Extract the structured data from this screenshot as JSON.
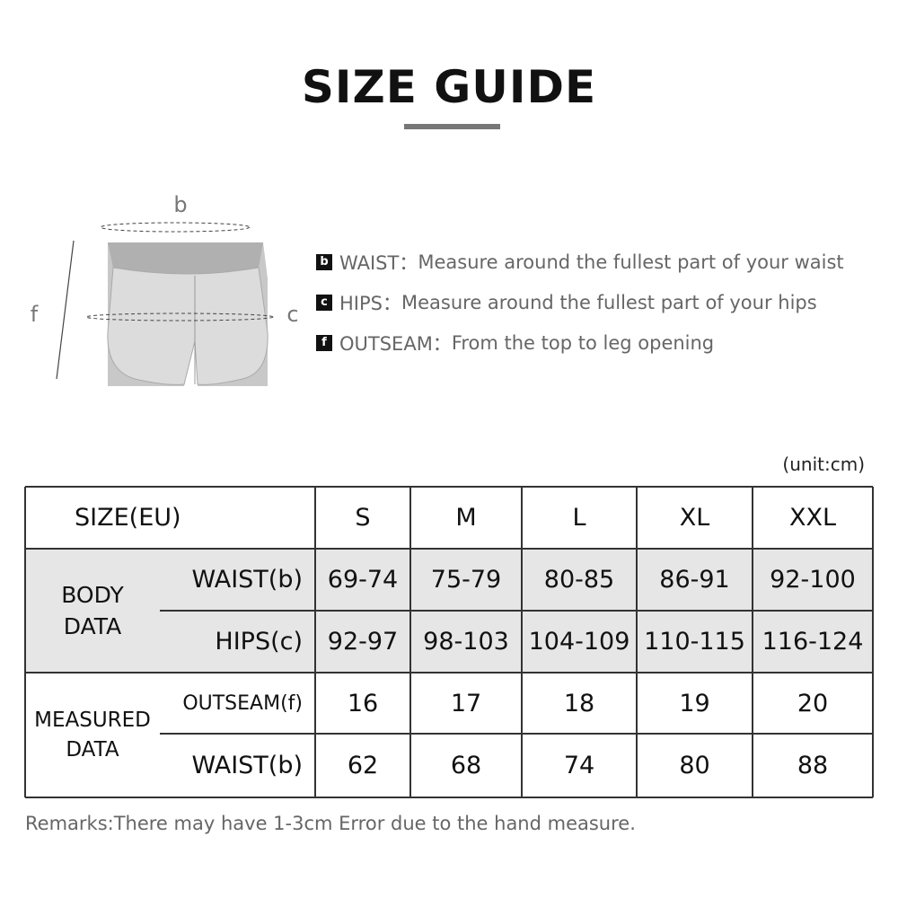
{
  "title": "SIZE GUIDE",
  "diagram": {
    "label_b": "b",
    "label_c": "c",
    "label_f": "f"
  },
  "legend": [
    {
      "key": "b",
      "name": "WAIST：",
      "desc": "Measure around the fullest part of your waist"
    },
    {
      "key": "c",
      "name": "HIPS：",
      "desc": "Measure around the fullest part of your hips"
    },
    {
      "key": "f",
      "name": "OUTSEAM：",
      "desc": "From the top to leg opening"
    }
  ],
  "unit": "(unit:cm)",
  "table": {
    "header": "SIZE(EU)",
    "sizes": [
      "S",
      "M",
      "L",
      "XL",
      "XXL"
    ],
    "groups": [
      {
        "label": "BODY\nDATA",
        "rows": [
          {
            "label": "WAIST(b)",
            "values": [
              "69-74",
              "75-79",
              "80-85",
              "86-91",
              "92-100"
            ]
          },
          {
            "label": "HIPS(c)",
            "values": [
              "92-97",
              "98-103",
              "104-109",
              "110-115",
              "116-124"
            ]
          }
        ]
      },
      {
        "label": "MEASURED\nDATA",
        "rows": [
          {
            "label": "OUTSEAM(f)",
            "values": [
              "16",
              "17",
              "18",
              "19",
              "20"
            ]
          },
          {
            "label": "WAIST(b)",
            "values": [
              "62",
              "68",
              "74",
              "80",
              "88"
            ]
          }
        ]
      }
    ]
  },
  "remarks": "Remarks:There may have 1-3cm Error due to the hand measure.",
  "colors": {
    "shaded_row": "#e6e6e6",
    "border": "#333333"
  }
}
